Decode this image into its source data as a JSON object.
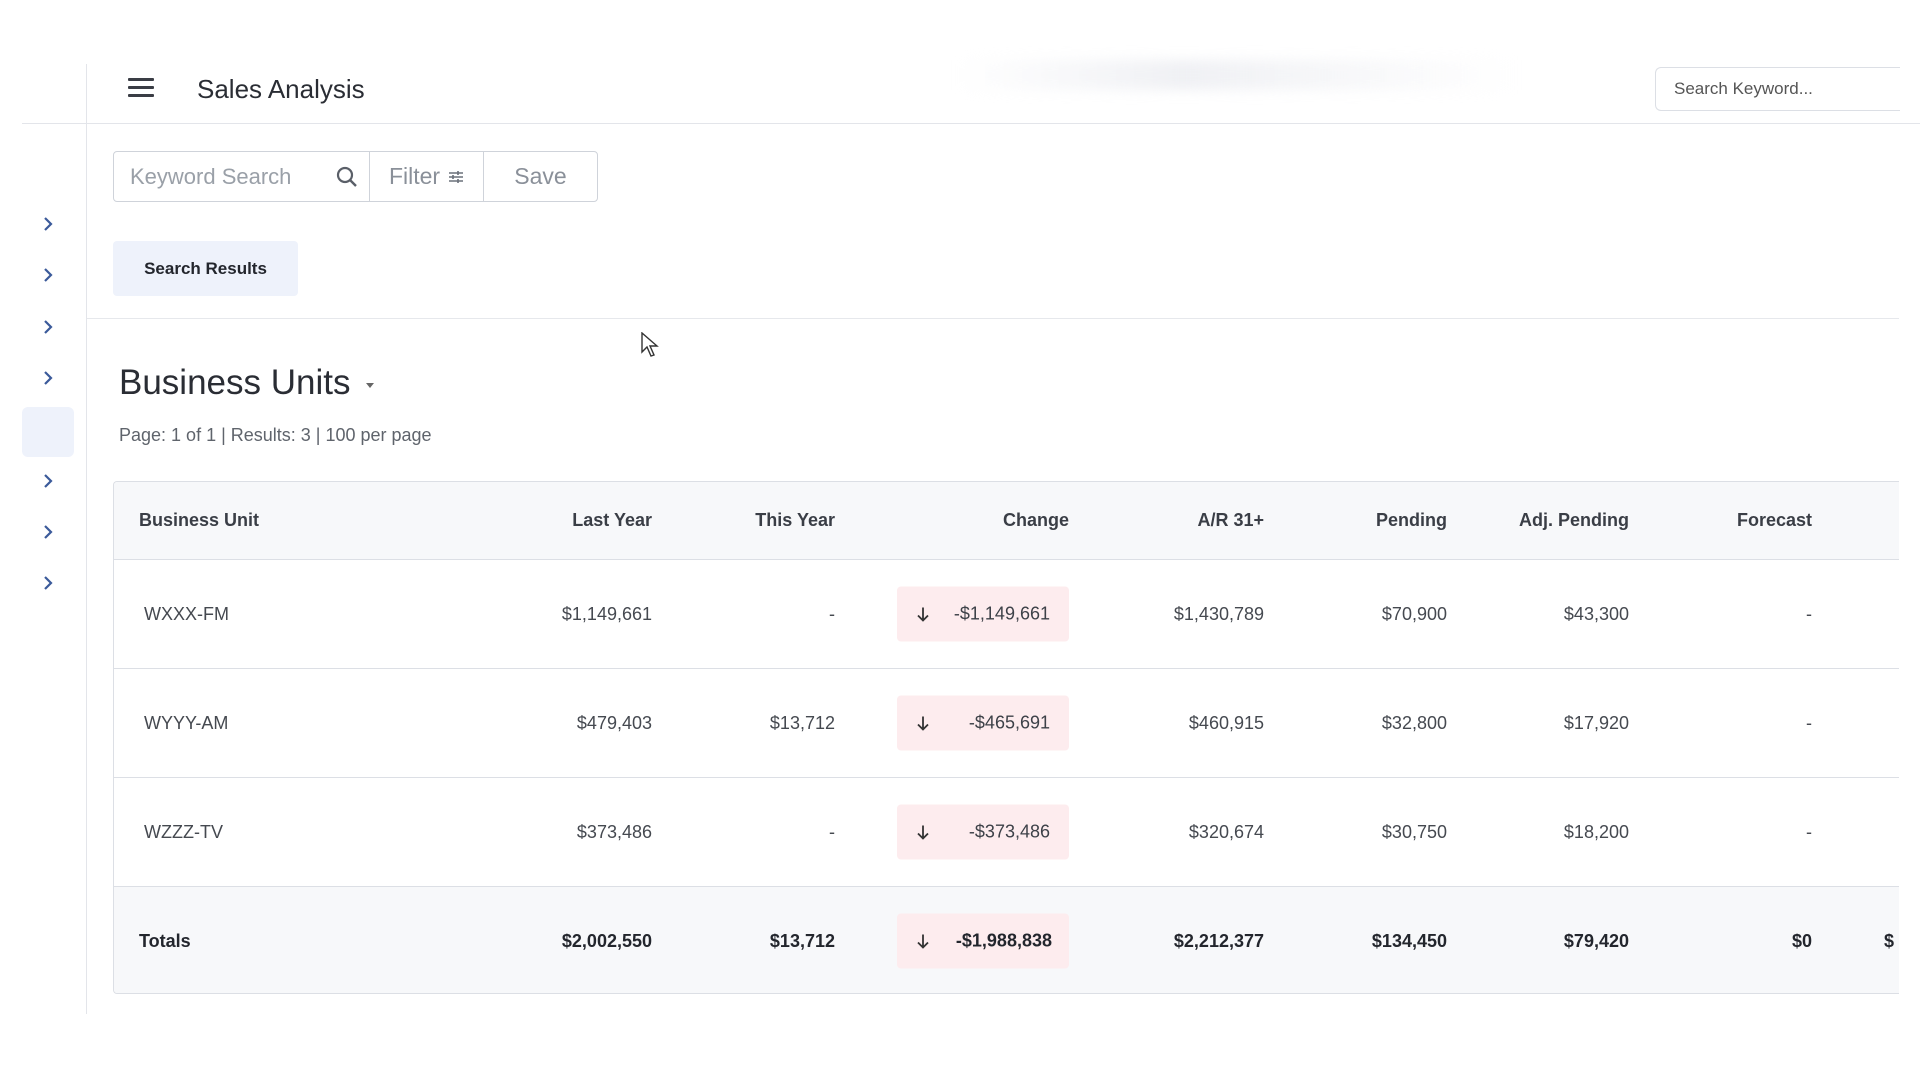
{
  "header": {
    "title": "Sales Analysis",
    "search_placeholder": "Search Keyword..."
  },
  "toolbar": {
    "keyword_placeholder": "Keyword Search",
    "filter_label": "Filter",
    "save_label": "Save"
  },
  "tabs": {
    "search_results": "Search Results"
  },
  "section": {
    "title": "Business Units",
    "paging": "Page: 1 of 1  | Results: 3 | 100 per page"
  },
  "sidebar": {
    "items": [
      {
        "icon": "chevron-right-icon",
        "active": false
      },
      {
        "icon": "chevron-right-icon",
        "active": false
      },
      {
        "icon": "chevron-right-icon",
        "active": false
      },
      {
        "icon": "chevron-right-icon",
        "active": false
      },
      {
        "icon": "",
        "active": true
      },
      {
        "icon": "chevron-right-icon",
        "active": false
      },
      {
        "icon": "chevron-right-icon",
        "active": false
      },
      {
        "icon": "chevron-right-icon",
        "active": false
      }
    ]
  },
  "table": {
    "columns": [
      "Business Unit",
      "Last Year",
      "This Year",
      "Change",
      "A/R 31+",
      "Pending",
      "Adj. Pending",
      "Forecast"
    ],
    "rows": [
      {
        "unit": "WXXX-FM",
        "last_year": "$1,149,661",
        "this_year": "-",
        "change": "-$1,149,661",
        "ar31": "$1,430,789",
        "pending": "$70,900",
        "adj_pending": "$43,300",
        "forecast": "-"
      },
      {
        "unit": "WYYY-AM",
        "last_year": "$479,403",
        "this_year": "$13,712",
        "change": "-$465,691",
        "ar31": "$460,915",
        "pending": "$32,800",
        "adj_pending": "$17,920",
        "forecast": "-"
      },
      {
        "unit": "WZZZ-TV",
        "last_year": "$373,486",
        "this_year": "-",
        "change": "-$373,486",
        "ar31": "$320,674",
        "pending": "$30,750",
        "adj_pending": "$18,200",
        "forecast": "-"
      }
    ],
    "totals": {
      "label": "Totals",
      "last_year": "$2,002,550",
      "this_year": "$13,712",
      "change": "-$1,988,838",
      "ar31": "$2,212,377",
      "pending": "$134,450",
      "adj_pending": "$79,420",
      "forecast": "$0",
      "overflow": "$"
    }
  },
  "colors": {
    "accent_tab": "#eef2fb",
    "negative_chip": "#fdecee"
  }
}
